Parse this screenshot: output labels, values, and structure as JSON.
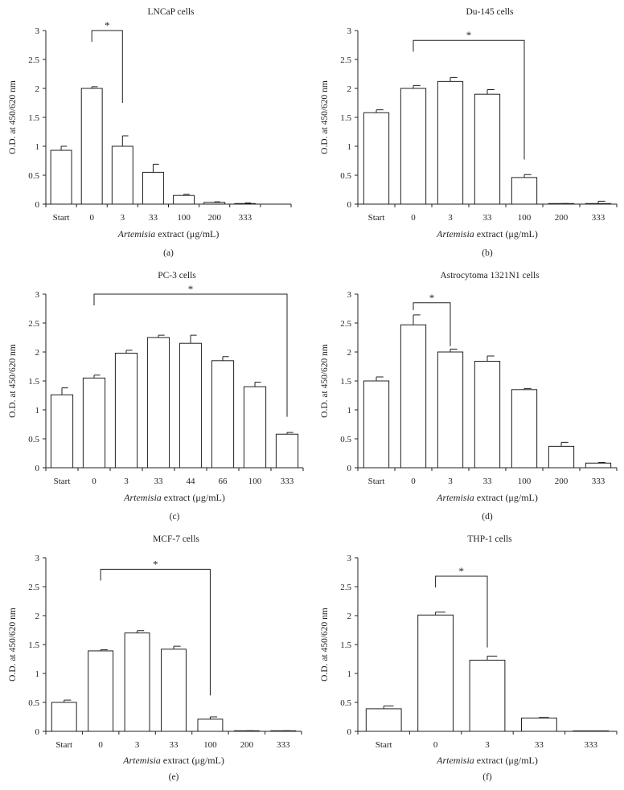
{
  "chart_data": [
    {
      "type": "bar",
      "panel_label": "(a)",
      "title": "LNCaP cells",
      "ylabel": "O.D. at 450/620 nm",
      "xlabel_italic": "Artemisia",
      "xlabel_rest": " extract (μg/mL)",
      "ylim": [
        0,
        3
      ],
      "yticks": [
        "0",
        "0.5",
        "1",
        "1.5",
        "2",
        "2.5",
        "3"
      ],
      "slots": 8,
      "categories": [
        "Start",
        "0",
        "3",
        "33",
        "100",
        "200",
        "333"
      ],
      "values": [
        0.93,
        2.0,
        1.0,
        0.55,
        0.15,
        0.03,
        0.01
      ],
      "errors": [
        0.07,
        0.03,
        0.18,
        0.14,
        0.02,
        0.01,
        0.01
      ],
      "significance": {
        "from": 1,
        "to": 2,
        "level": 3.0,
        "drop_to": 1.75,
        "label": "*"
      }
    },
    {
      "type": "bar",
      "panel_label": "(b)",
      "title": "Du-145 cells",
      "ylabel": "O.D. at 450/620 nm",
      "xlabel_italic": "Artemisia",
      "xlabel_rest": " extract (μg/mL)",
      "ylim": [
        0,
        3
      ],
      "yticks": [
        "0",
        "0.5",
        "1",
        "1.5",
        "2",
        "2.5",
        "3"
      ],
      "slots": 7,
      "categories": [
        "Start",
        "0",
        "3",
        "33",
        "100",
        "200",
        "333"
      ],
      "values": [
        1.58,
        2.0,
        2.12,
        1.9,
        0.46,
        0.01,
        0.01
      ],
      "errors": [
        0.05,
        0.05,
        0.07,
        0.08,
        0.05,
        0.0,
        0.04
      ],
      "significance": {
        "from": 1,
        "to": 4,
        "level": 2.83,
        "drop_to": 0.77,
        "label": "*"
      }
    },
    {
      "type": "bar",
      "panel_label": "(c)",
      "title": "PC-3 cells",
      "ylabel": "O.D. at 450/620 nm",
      "xlabel_italic": "Artemisia",
      "xlabel_rest": " extract (μg/mL)",
      "ylim": [
        0,
        3
      ],
      "yticks": [
        "0",
        "0.5",
        "1",
        "1.5",
        "2",
        "2.5",
        "3"
      ],
      "slots": 8,
      "categories": [
        "Start",
        "0",
        "3",
        "33",
        "44",
        "66",
        "100",
        "333"
      ],
      "values": [
        1.26,
        1.55,
        1.98,
        2.25,
        2.15,
        1.85,
        1.4,
        0.58
      ],
      "errors": [
        0.12,
        0.05,
        0.05,
        0.04,
        0.14,
        0.07,
        0.08,
        0.03
      ],
      "significance": {
        "from": 1,
        "to": 7,
        "level": 3.0,
        "drop_to": 0.88,
        "label": "*"
      }
    },
    {
      "type": "bar",
      "panel_label": "(d)",
      "title": "Astrocytoma 1321N1 cells",
      "ylabel": "O.D. at 450/620 nm",
      "xlabel_italic": "Artemisia",
      "xlabel_rest": " extract (μg/mL)",
      "ylim": [
        0,
        3
      ],
      "yticks": [
        "0",
        "0.5",
        "1",
        "1.5",
        "2",
        "2.5",
        "3"
      ],
      "slots": 7,
      "categories": [
        "Start",
        "0",
        "3",
        "33",
        "100",
        "200",
        "333"
      ],
      "values": [
        1.5,
        2.47,
        2.0,
        1.84,
        1.35,
        0.37,
        0.08
      ],
      "errors": [
        0.07,
        0.17,
        0.05,
        0.09,
        0.02,
        0.07,
        0.01
      ],
      "significance": {
        "from": 1,
        "to": 2,
        "level": 2.85,
        "drop_to": 2.1,
        "label": "*"
      }
    },
    {
      "type": "bar",
      "panel_label": "(e)",
      "title": "MCF-7 cells",
      "ylabel": "O.D. at 450/620 nm",
      "xlabel_italic": "Artemisia",
      "xlabel_rest": " extract (μg/mL)",
      "ylim": [
        0,
        3
      ],
      "yticks": [
        "0",
        "0.5",
        "1",
        "1.5",
        "2",
        "2.5",
        "3"
      ],
      "slots": 7,
      "categories": [
        "Start",
        "0",
        "3",
        "33",
        "100",
        "200",
        "333"
      ],
      "values": [
        0.5,
        1.39,
        1.7,
        1.42,
        0.21,
        0.01,
        0.01
      ],
      "errors": [
        0.04,
        0.02,
        0.04,
        0.05,
        0.04,
        0.0,
        0.0
      ],
      "significance": {
        "from": 1,
        "to": 4,
        "level": 2.8,
        "drop_to": 0.62,
        "label": "*"
      }
    },
    {
      "type": "bar",
      "panel_label": "(f)",
      "title": "THP-1 cells",
      "ylabel": "O.D. at 450/620 nm",
      "xlabel_italic": "Artemisia",
      "xlabel_rest": " extract (μg/mL)",
      "ylim": [
        0,
        3
      ],
      "yticks": [
        "0",
        "0.5",
        "1",
        "1.5",
        "2",
        "2.5",
        "3"
      ],
      "slots": 5,
      "categories": [
        "Start",
        "0",
        "3",
        "33",
        "333"
      ],
      "values": [
        0.39,
        2.01,
        1.23,
        0.23,
        0.0
      ],
      "errors": [
        0.05,
        0.05,
        0.07,
        0.01,
        0.0
      ],
      "significance": {
        "from": 1,
        "to": 2,
        "level": 2.68,
        "drop_to": 1.45,
        "label": "*"
      }
    }
  ]
}
